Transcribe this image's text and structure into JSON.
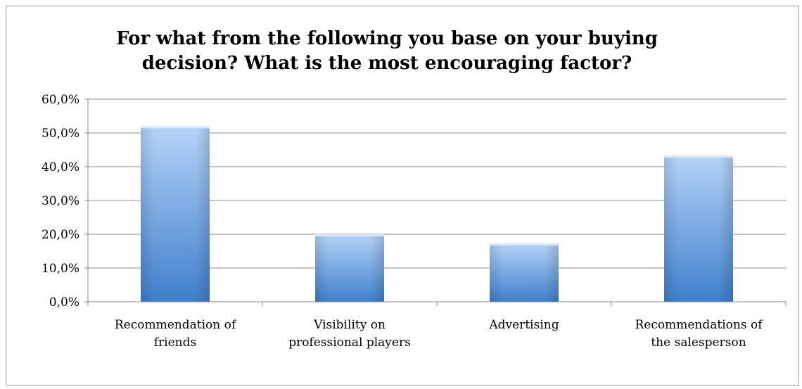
{
  "chart_data": {
    "type": "bar",
    "title_lines": [
      "For what from the following you base on your buying",
      "decision? What is the most encouraging factor?"
    ],
    "categories": [
      [
        "Recommendation of",
        "friends"
      ],
      [
        "Visibility on",
        "professional players"
      ],
      [
        "Advertising"
      ],
      [
        "Recommendations of",
        "the salesperson"
      ]
    ],
    "values": [
      52.0,
      20.0,
      17.3,
      43.3
    ],
    "ylim": [
      0,
      60
    ],
    "yticks": [
      "0,0%",
      "10,0%",
      "20,0%",
      "30,0%",
      "40,0%",
      "50,0%",
      "60,0%"
    ],
    "grid": true,
    "legend": "none",
    "colors": {
      "bar_top": "#b5d3f8",
      "bar_bottom": "#3f7fcc",
      "grid": "#8c8c8c"
    }
  }
}
